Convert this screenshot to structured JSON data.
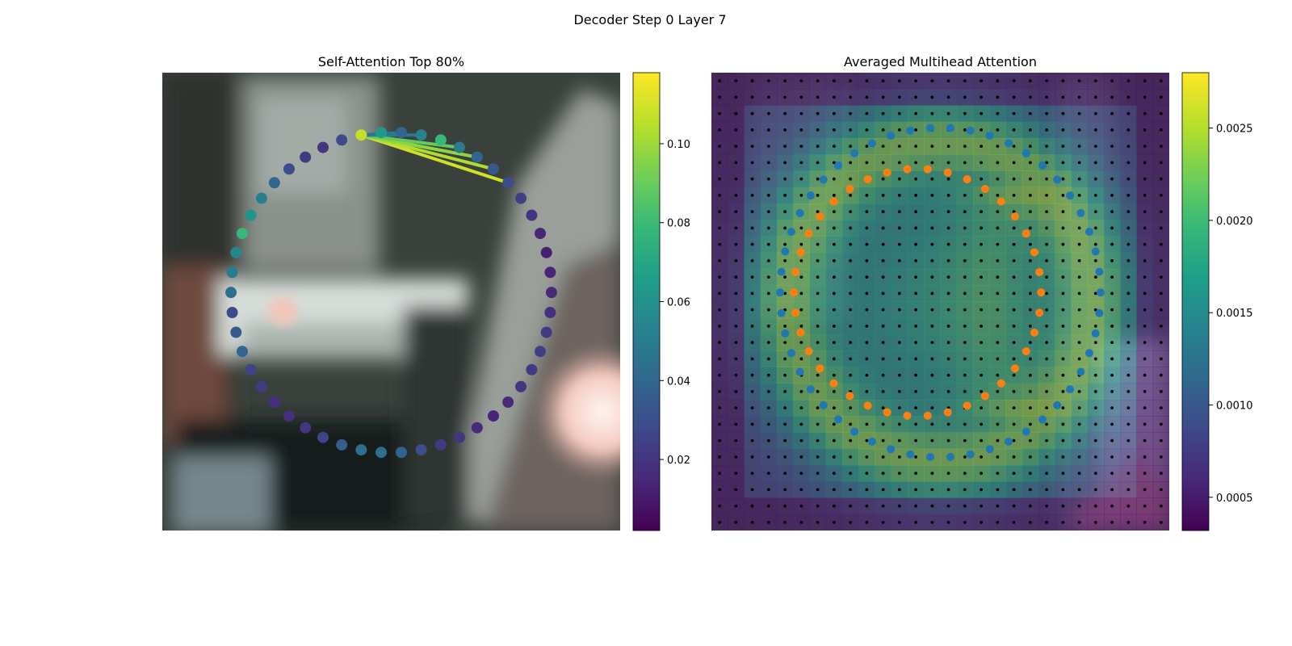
{
  "figure": {
    "suptitle": "Decoder Step 0 Layer 7"
  },
  "colors": {
    "viridis": [
      "#440154",
      "#482878",
      "#3e4989",
      "#31688e",
      "#26828e",
      "#1f9e89",
      "#35b779",
      "#6ece58",
      "#b5de2b",
      "#fde725"
    ],
    "ring_inner": "#ff7f0e",
    "ring_outer": "#1f77b4",
    "grid_dot": "#000000"
  },
  "chart_data": [
    {
      "type": "scatter",
      "title": "Self-Attention Top 80%",
      "description_points": "50 query points arranged on a closed ring over a blurred road-scene image; dot color = attention weight",
      "point_weights": [
        0.028,
        0.02,
        0.022,
        0.03,
        0.04,
        0.052,
        0.062,
        0.08,
        0.056,
        0.05,
        0.044,
        0.028,
        0.034,
        0.04,
        0.026,
        0.022,
        0.018,
        0.018,
        0.02,
        0.026,
        0.036,
        0.044,
        0.044,
        0.038,
        0.03,
        0.022,
        0.02,
        0.016,
        0.014,
        0.016,
        0.02,
        0.022,
        0.024,
        0.022,
        0.018,
        0.016,
        0.014,
        0.012,
        0.014,
        0.02,
        0.024,
        0.03,
        0.034,
        0.04,
        0.05,
        0.08,
        0.054,
        0.04,
        0.064,
        0.108
      ],
      "attention_links": [
        {
          "to_point": 41,
          "weight": 0.11
        },
        {
          "to_point": 42,
          "weight": 0.104
        },
        {
          "to_point": 43,
          "weight": 0.098
        },
        {
          "to_point": 44,
          "weight": 0.09
        },
        {
          "to_point": 46,
          "weight": 0.05
        },
        {
          "to_point": 47,
          "weight": 0.048
        }
      ],
      "colorbar": {
        "ticks": [
          0.02,
          0.04,
          0.06,
          0.08,
          0.1
        ],
        "tick_labels": [
          "0.02",
          "0.04",
          "0.06",
          "0.08",
          "0.10"
        ],
        "range": [
          0.002,
          0.118
        ]
      }
    },
    {
      "type": "heatmap",
      "title": "Averaged Multihead Attention",
      "grid": {
        "rows": 28,
        "cols": 28
      },
      "ring_points": {
        "outer_count": 50,
        "inner_count": 38
      },
      "colorbar": {
        "ticks": [
          0.0005,
          0.001,
          0.0015,
          0.002,
          0.0025
        ],
        "tick_labels": [
          "0.0005",
          "0.0010",
          "0.0015",
          "0.0020",
          "0.0025"
        ],
        "range": [
          0.00032,
          0.0028
        ]
      }
    }
  ]
}
